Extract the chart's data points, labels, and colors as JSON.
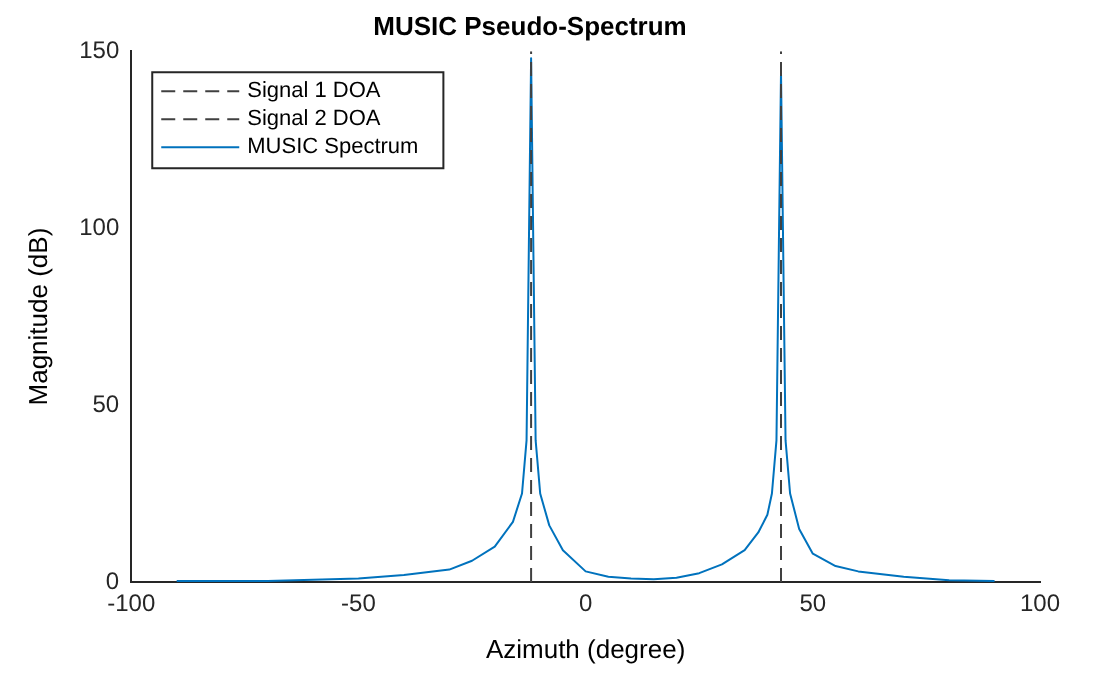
{
  "chart_data": {
    "type": "line",
    "title": "MUSIC Pseudo-Spectrum",
    "xlabel": "Azimuth (degree)",
    "ylabel": "Magnitude (dB)",
    "xlim": [
      -100,
      100
    ],
    "xticks": [
      -100,
      -50,
      0,
      50,
      100
    ],
    "ylim": [
      0,
      150
    ],
    "yticks": [
      0,
      50,
      100,
      150
    ],
    "grid": false,
    "legend": "top left",
    "marker": "none",
    "series": [
      {
        "name": "Signal 1 DOA",
        "color": "#404040",
        "line_style": "dashed",
        "x": [
          -12,
          -12
        ],
        "values": [
          0,
          150
        ]
      },
      {
        "name": "Signal 2 DOA",
        "color": "#404040",
        "line_style": "dashed",
        "x": [
          43,
          43
        ],
        "values": [
          0,
          150
        ]
      },
      {
        "name": "MUSIC Spectrum",
        "color": "#0072bd",
        "line_style": "solid",
        "x": [
          -90,
          -70,
          -50,
          -40,
          -30,
          -25,
          -20,
          -16,
          -14,
          -13,
          -12,
          -11,
          -10,
          -8,
          -5,
          0,
          5,
          10,
          15,
          20,
          25,
          30,
          35,
          38,
          40,
          41,
          42,
          43,
          44,
          45,
          47,
          50,
          55,
          60,
          70,
          80,
          90
        ],
        "values": [
          0.3,
          0.3,
          1,
          2,
          3.5,
          6,
          10,
          17,
          25,
          40,
          148,
          40,
          25,
          16,
          9,
          3,
          1.5,
          1,
          0.8,
          1.2,
          2.5,
          5,
          9,
          14,
          19,
          25,
          40,
          144,
          40,
          25,
          15,
          8,
          4.5,
          3,
          1.5,
          0.5,
          0.3
        ]
      }
    ]
  }
}
